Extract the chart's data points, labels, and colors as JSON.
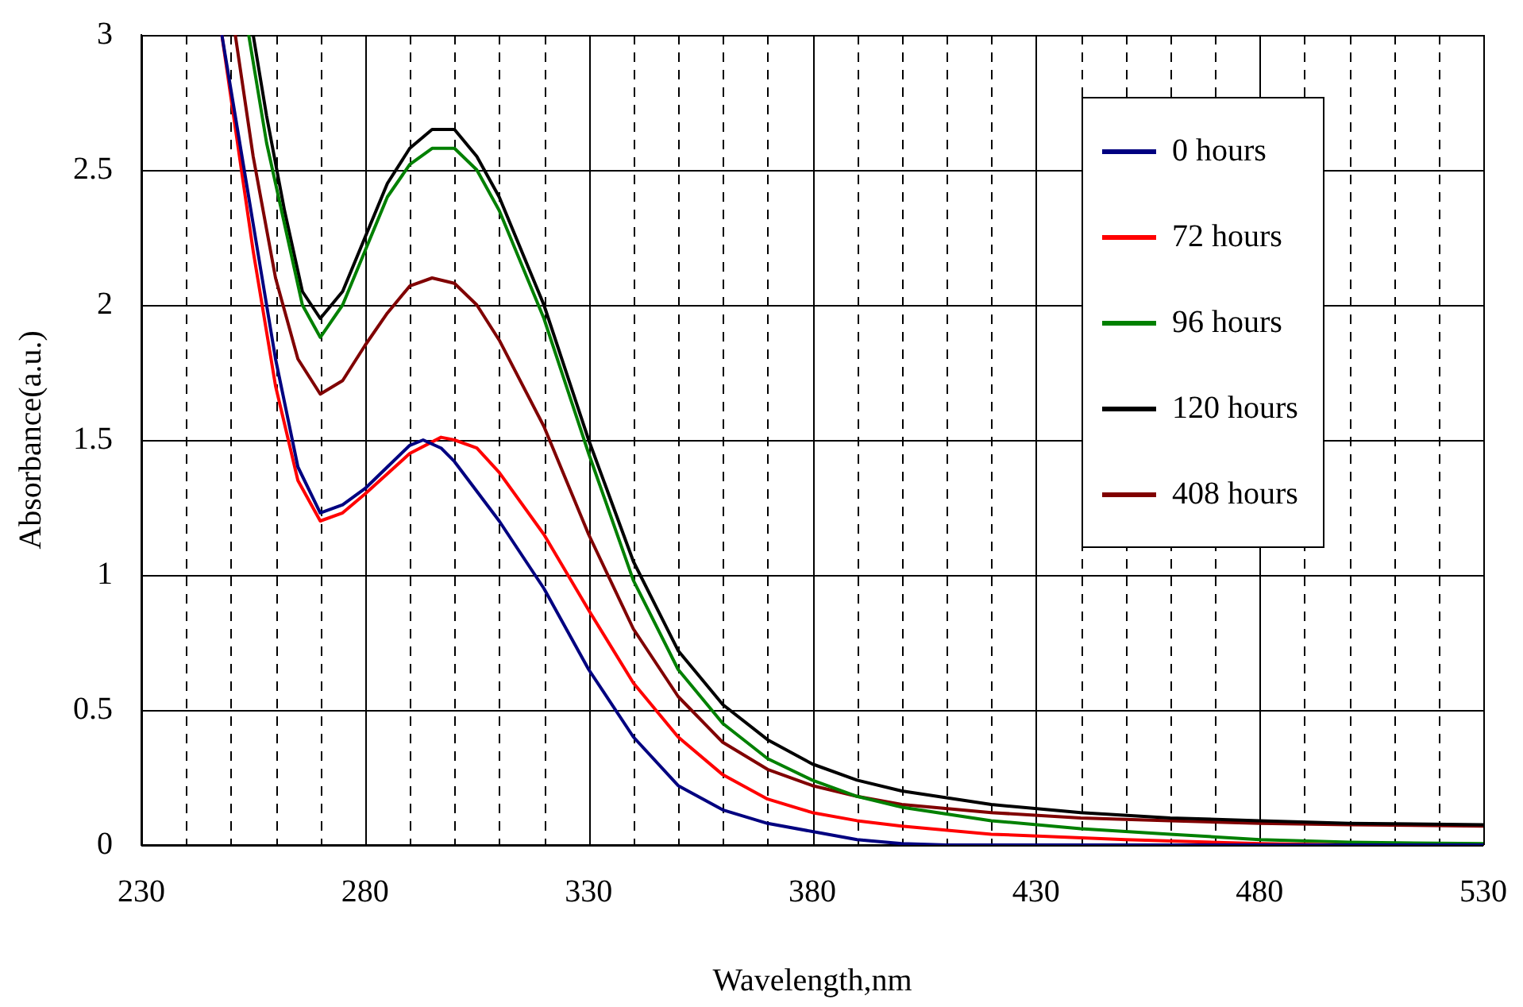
{
  "chart_data": {
    "type": "line",
    "xlabel": "Wavelength,nm",
    "ylabel": "Absorbance(a.u.)",
    "xlim": [
      230,
      530
    ],
    "ylim": [
      0,
      3
    ],
    "xticks": [
      230,
      {
        "value": 240,
        "label": null
      },
      {
        "value": 250,
        "label": null
      },
      {
        "value": 260,
        "label": null
      },
      {
        "value": 270,
        "label": null
      },
      280,
      {
        "value": 290,
        "label": null
      },
      {
        "value": 300,
        "label": null
      },
      {
        "value": 310,
        "label": null
      },
      {
        "value": 320,
        "label": null
      },
      330,
      {
        "value": 340,
        "label": null
      },
      {
        "value": 350,
        "label": null
      },
      {
        "value": 360,
        "label": null
      },
      {
        "value": 370,
        "label": null
      },
      380,
      {
        "value": 390,
        "label": null
      },
      {
        "value": 400,
        "label": null
      },
      {
        "value": 410,
        "label": null
      },
      {
        "value": 420,
        "label": null
      },
      430,
      {
        "value": 440,
        "label": null
      },
      {
        "value": 450,
        "label": null
      },
      {
        "value": 460,
        "label": null
      },
      {
        "value": 470,
        "label": null
      },
      480,
      {
        "value": 490,
        "label": null
      },
      {
        "value": 500,
        "label": null
      },
      {
        "value": 510,
        "label": null
      },
      {
        "value": 520,
        "label": null
      },
      530
    ],
    "yticks": [
      0,
      0.5,
      1,
      1.5,
      2,
      2.5,
      3
    ],
    "grid": true,
    "legend": "right",
    "marker": "none",
    "line_style": "solid",
    "series": [
      {
        "name": "0 hours",
        "color": "#000080",
        "x": [
          248,
          255,
          260,
          265,
          270,
          275,
          280,
          285,
          290,
          293,
          297,
          300,
          310,
          320,
          330,
          340,
          350,
          360,
          370,
          380,
          390,
          400,
          410,
          530
        ],
        "values": [
          3,
          2.3,
          1.8,
          1.4,
          1.23,
          1.26,
          1.32,
          1.4,
          1.48,
          1.5,
          1.47,
          1.42,
          1.2,
          0.95,
          0.65,
          0.4,
          0.22,
          0.13,
          0.08,
          0.05,
          0.02,
          0.005,
          0,
          0
        ]
      },
      {
        "name": "72 hours",
        "color": "#ff0000",
        "x": [
          248,
          255,
          260,
          265,
          270,
          275,
          280,
          290,
          297,
          300,
          305,
          310,
          320,
          330,
          340,
          350,
          360,
          370,
          380,
          390,
          400,
          420,
          450,
          480,
          500,
          530
        ],
        "values": [
          3,
          2.2,
          1.7,
          1.35,
          1.2,
          1.23,
          1.3,
          1.45,
          1.51,
          1.5,
          1.47,
          1.38,
          1.15,
          0.87,
          0.6,
          0.4,
          0.26,
          0.17,
          0.12,
          0.09,
          0.07,
          0.04,
          0.02,
          0.005,
          0,
          0
        ]
      },
      {
        "name": "96 hours",
        "color": "#008000",
        "x": [
          254,
          258,
          262,
          266,
          270,
          275,
          280,
          285,
          290,
          295,
          300,
          305,
          310,
          320,
          330,
          340,
          350,
          360,
          370,
          380,
          390,
          400,
          420,
          440,
          460,
          480,
          500,
          530
        ],
        "values": [
          3,
          2.6,
          2.3,
          2,
          1.88,
          2,
          2.2,
          2.4,
          2.52,
          2.58,
          2.58,
          2.5,
          2.35,
          1.95,
          1.45,
          0.98,
          0.65,
          0.45,
          0.32,
          0.24,
          0.18,
          0.14,
          0.09,
          0.06,
          0.04,
          0.02,
          0.01,
          0.005
        ]
      },
      {
        "name": "120 hours",
        "color": "#000000",
        "x": [
          255,
          258,
          262,
          266,
          270,
          275,
          280,
          285,
          290,
          295,
          300,
          305,
          310,
          320,
          330,
          340,
          350,
          360,
          370,
          380,
          390,
          400,
          420,
          440,
          460,
          480,
          500,
          530
        ],
        "values": [
          3,
          2.7,
          2.35,
          2.05,
          1.95,
          2.05,
          2.25,
          2.45,
          2.58,
          2.65,
          2.65,
          2.55,
          2.4,
          2,
          1.5,
          1.05,
          0.72,
          0.52,
          0.39,
          0.3,
          0.24,
          0.2,
          0.15,
          0.12,
          0.1,
          0.09,
          0.08,
          0.075
        ]
      },
      {
        "name": "408 hours",
        "color": "#800000",
        "x": [
          251,
          255,
          260,
          265,
          270,
          275,
          280,
          285,
          290,
          295,
          300,
          305,
          310,
          320,
          330,
          340,
          350,
          360,
          370,
          380,
          390,
          400,
          420,
          440,
          460,
          480,
          500,
          530
        ],
        "values": [
          3,
          2.55,
          2.1,
          1.8,
          1.67,
          1.72,
          1.85,
          1.97,
          2.07,
          2.1,
          2.08,
          2,
          1.87,
          1.55,
          1.15,
          0.8,
          0.55,
          0.38,
          0.28,
          0.22,
          0.18,
          0.15,
          0.12,
          0.1,
          0.09,
          0.08,
          0.075,
          0.07
        ]
      }
    ]
  }
}
